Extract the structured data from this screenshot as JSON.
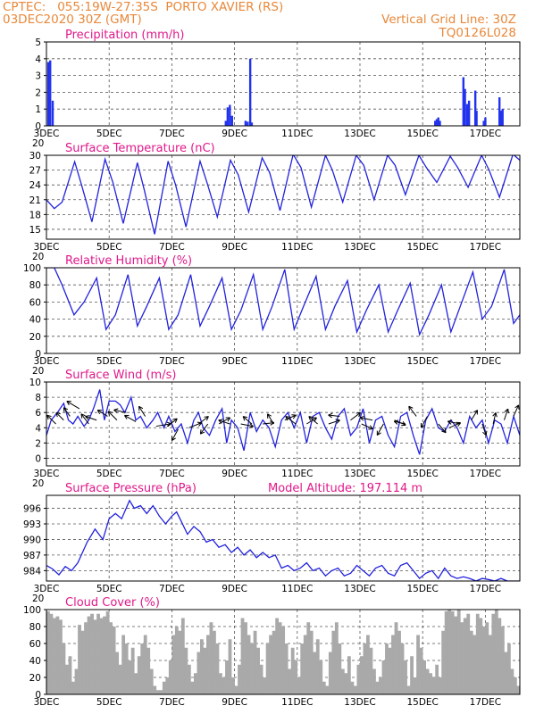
{
  "header": {
    "line1": "CPTEC:   055:19W-27:35S  PORTO XAVIER (RS)",
    "line2": "03DEC2020 30Z (GMT)",
    "grid_note": "Vertical Grid Line: 30Z",
    "code": "TQ0126L028"
  },
  "colors": {
    "series": "#2222dd",
    "bars": "#2233ee",
    "cloud": "#a9a9a9",
    "title": "#e0188a",
    "header": "#e8883a"
  },
  "x_axis": {
    "labels": [
      "3DEC",
      "5DEC",
      "7DEC",
      "9DEC",
      "11DEC",
      "13DEC",
      "15DEC",
      "17DEC"
    ],
    "label_days": [
      3,
      5,
      7,
      9,
      11,
      13,
      15,
      17
    ],
    "range_days": [
      3,
      18.1
    ],
    "cut_label": "20"
  },
  "chart_data": [
    {
      "type": "bar",
      "title": "Precipitation (mm/h)",
      "ylim": [
        0,
        5
      ],
      "yticks": [
        0,
        1,
        2,
        3,
        4,
        5
      ],
      "x": [
        3.06,
        3.12,
        3.2,
        8.72,
        8.78,
        8.85,
        8.92,
        9.35,
        9.42,
        9.5,
        9.55,
        15.4,
        15.45,
        15.5,
        15.55,
        16.3,
        16.35,
        16.42,
        16.48,
        16.68,
        16.72,
        16.95,
        17.0,
        17.45,
        17.5,
        17.55
      ],
      "values": [
        3.8,
        3.9,
        1.5,
        0.3,
        1.1,
        1.25,
        0.6,
        0.3,
        0.25,
        4.0,
        0.2,
        0.3,
        0.4,
        0.5,
        0.3,
        2.9,
        2.2,
        1.3,
        1.5,
        2.1,
        0.9,
        0.3,
        0.5,
        1.7,
        0.9,
        1.0
      ]
    },
    {
      "type": "line",
      "title": "Surface Temperature (nC)",
      "ylim": [
        13,
        30
      ],
      "yticks": [
        15,
        18,
        21,
        24,
        27,
        30
      ],
      "series": [
        {
          "x": [
            3.0,
            3.25,
            3.5,
            3.9,
            4.12,
            4.45,
            4.87,
            5.12,
            5.45,
            5.9,
            6.12,
            6.45,
            6.88,
            7.12,
            7.45,
            7.9,
            8.12,
            8.45,
            8.87,
            9.12,
            9.45,
            9.88,
            10.12,
            10.45,
            10.87,
            11.12,
            11.45,
            11.9,
            12.12,
            12.45,
            12.88,
            13.12,
            13.45,
            13.88,
            14.12,
            14.45,
            14.88,
            15.12,
            15.45,
            15.88,
            16.12,
            16.45,
            16.88,
            17.12,
            17.45,
            17.88,
            18.1
          ],
          "y": [
            21.0,
            19.2,
            20.5,
            28.7,
            24.0,
            16.5,
            29.2,
            24.5,
            16.2,
            28.5,
            23.0,
            14.0,
            28.8,
            24.0,
            15.5,
            28.8,
            24.5,
            17.5,
            29.0,
            26.0,
            18.5,
            29.5,
            26.5,
            18.8,
            30.2,
            27.5,
            19.5,
            30.0,
            27.0,
            20.5,
            30.0,
            28.0,
            21.0,
            30.0,
            28.0,
            22.0,
            30.0,
            27.5,
            24.5,
            29.8,
            27.5,
            23.5,
            30.0,
            27.0,
            21.5,
            30.2,
            29.0
          ]
        }
      ]
    },
    {
      "type": "line",
      "title": "Relative Humidity (%)",
      "ylim": [
        0,
        100
      ],
      "yticks": [
        0,
        20,
        40,
        60,
        80,
        100
      ],
      "series": [
        {
          "x": [
            3.0,
            3.25,
            3.5,
            3.88,
            4.2,
            4.6,
            4.9,
            5.2,
            5.6,
            5.9,
            6.2,
            6.6,
            6.9,
            7.2,
            7.6,
            7.9,
            8.2,
            8.6,
            8.9,
            9.2,
            9.6,
            9.9,
            10.2,
            10.6,
            10.9,
            11.2,
            11.6,
            11.9,
            12.2,
            12.6,
            12.9,
            13.2,
            13.6,
            13.9,
            14.2,
            14.6,
            14.9,
            15.2,
            15.6,
            15.9,
            16.2,
            16.6,
            16.9,
            17.2,
            17.6,
            17.9,
            18.1
          ],
          "y": [
            100,
            100,
            80,
            45,
            60,
            88,
            28,
            45,
            92,
            32,
            55,
            88,
            28,
            45,
            92,
            32,
            55,
            88,
            28,
            50,
            92,
            28,
            55,
            98,
            28,
            55,
            90,
            28,
            55,
            85,
            25,
            50,
            80,
            25,
            50,
            82,
            22,
            45,
            80,
            25,
            55,
            95,
            40,
            55,
            98,
            35,
            45
          ]
        }
      ]
    },
    {
      "type": "line",
      "title": "Surface Wind (m/s)",
      "ylim": [
        -1,
        10
      ],
      "yticks": [
        0,
        2,
        4,
        6,
        8,
        10
      ],
      "series": [
        {
          "x": [
            3.0,
            3.15,
            3.35,
            3.55,
            3.7,
            3.85,
            4.0,
            4.2,
            4.35,
            4.5,
            4.7,
            4.85,
            5.0,
            5.2,
            5.35,
            5.5,
            5.7,
            5.85,
            6.0,
            6.2,
            6.4,
            6.55,
            6.75,
            6.9,
            7.1,
            7.3,
            7.5,
            7.7,
            7.85,
            8.0,
            8.2,
            8.4,
            8.6,
            8.75,
            8.9,
            9.1,
            9.3,
            9.5,
            9.7,
            9.9,
            10.1,
            10.3,
            10.5,
            10.7,
            10.9,
            11.1,
            11.3,
            11.5,
            11.7,
            11.9,
            12.1,
            12.3,
            12.5,
            12.7,
            12.9,
            13.1,
            13.3,
            13.5,
            13.7,
            13.9,
            14.1,
            14.3,
            14.5,
            14.7,
            14.9,
            15.1,
            15.3,
            15.5,
            15.7,
            15.9,
            16.1,
            16.3,
            16.5,
            16.7,
            16.9,
            17.1,
            17.3,
            17.5,
            17.7,
            17.9,
            18.1
          ],
          "y": [
            3.0,
            5.0,
            6.0,
            7.2,
            5.0,
            4.5,
            5.5,
            4.2,
            5.0,
            6.5,
            9.0,
            5.0,
            7.5,
            7.5,
            7.0,
            6.0,
            8.0,
            5.0,
            5.5,
            4.0,
            5.0,
            6.0,
            4.0,
            5.5,
            3.5,
            4.5,
            2.0,
            5.0,
            6.0,
            4.0,
            3.0,
            5.0,
            6.5,
            2.0,
            5.0,
            4.0,
            1.0,
            6.0,
            3.5,
            5.0,
            4.0,
            1.5,
            5.0,
            6.0,
            4.0,
            6.0,
            2.0,
            5.5,
            6.0,
            4.0,
            2.5,
            5.5,
            6.5,
            3.0,
            4.0,
            6.5,
            2.0,
            5.0,
            5.5,
            3.0,
            1.5,
            5.5,
            6.0,
            3.0,
            0.5,
            5.0,
            6.5,
            4.0,
            3.5,
            5.0,
            4.0,
            2.0,
            5.5,
            4.0,
            5.0,
            2.0,
            5.0,
            4.5,
            2.0,
            5.5,
            3.0
          ]
        }
      ],
      "arrows": {
        "x": [
          3.3,
          3.55,
          3.75,
          4.05,
          4.35,
          4.6,
          4.95,
          5.25,
          5.55,
          5.85,
          6.15,
          6.5,
          6.85,
          7.2,
          7.55,
          7.85,
          8.15,
          8.5,
          8.85,
          9.2,
          9.55,
          9.9,
          10.25,
          10.6,
          10.95,
          11.3,
          11.65,
          12.0,
          12.35,
          12.7,
          13.05,
          13.4,
          13.75,
          14.1,
          14.45,
          14.8,
          15.15,
          15.5,
          15.85,
          16.2,
          16.55,
          16.9,
          17.25,
          17.6,
          17.9
        ],
        "y": [
          4.5,
          5.0,
          5.5,
          6.5,
          4.5,
          5.0,
          5.5,
          5.0,
          6.0,
          4.8,
          5.5,
          4.2,
          4.2,
          3.8,
          4.0,
          4.5,
          4.5,
          4.5,
          4.5,
          4.5,
          4.5,
          4.5,
          4.5,
          5.0,
          4.5,
          4.5,
          4.5,
          4.5,
          5.5,
          5.0,
          4.5,
          5.0,
          4.5,
          5.0,
          4.5,
          5.5,
          5.5,
          4.5,
          4.0,
          4.5,
          5.0,
          4.5,
          4.5,
          5.0,
          5.5
        ],
        "u": [
          -0.7,
          -0.6,
          -0.5,
          -1.0,
          -0.6,
          -0.9,
          -0.8,
          -0.7,
          -1.0,
          -0.9,
          -0.5,
          1.2,
          0.8,
          -0.5,
          1.0,
          0.8,
          -0.6,
          0.9,
          -0.9,
          1.0,
          -0.7,
          0.9,
          -0.5,
          0.9,
          -0.8,
          0.8,
          -0.7,
          0.9,
          -0.9,
          0.8,
          0.9,
          -1.0,
          -0.5,
          0.9,
          -0.9,
          -0.6,
          -0.5,
          0.6,
          0.9,
          -1.0,
          0.5,
          0.3,
          0.2,
          0.3,
          0.4
        ],
        "v": [
          0.7,
          0.6,
          0.7,
          0.6,
          0.8,
          0.3,
          0.5,
          0.7,
          0.2,
          0.5,
          0.8,
          0.2,
          0.6,
          -0.9,
          0.4,
          0.6,
          -0.8,
          0.5,
          0.3,
          -0.2,
          0.6,
          0.1,
          0.8,
          0.4,
          0.6,
          0.5,
          0.6,
          0.3,
          0.1,
          0.6,
          -0.4,
          0.2,
          -0.9,
          -0.4,
          0.2,
          0.8,
          -0.9,
          -0.7,
          0.4,
          0.2,
          0.8,
          -0.9,
          0.9,
          0.9,
          0.9
        ]
      }
    },
    {
      "type": "line",
      "title": "Surface Pressure (hPa)",
      "subtitle": "Model Altitude: 197.114  m",
      "ylim": [
        982,
        998.5
      ],
      "yticks": [
        984,
        987,
        990,
        993,
        996
      ],
      "series": [
        {
          "x": [
            3.0,
            3.2,
            3.4,
            3.6,
            3.8,
            4.0,
            4.3,
            4.55,
            4.8,
            5.0,
            5.2,
            5.4,
            5.65,
            5.8,
            6.0,
            6.2,
            6.4,
            6.6,
            6.8,
            7.0,
            7.15,
            7.3,
            7.5,
            7.7,
            7.9,
            8.1,
            8.3,
            8.5,
            8.7,
            8.9,
            9.1,
            9.3,
            9.5,
            9.7,
            9.9,
            10.1,
            10.3,
            10.5,
            10.7,
            10.9,
            11.1,
            11.3,
            11.5,
            11.7,
            11.9,
            12.1,
            12.3,
            12.5,
            12.7,
            12.9,
            13.1,
            13.3,
            13.5,
            13.7,
            13.9,
            14.1,
            14.3,
            14.5,
            14.7,
            14.9,
            15.1,
            15.3,
            15.5,
            15.7,
            15.9,
            16.1,
            16.3,
            16.5,
            16.7,
            16.9,
            17.1,
            17.3,
            17.5,
            17.7,
            17.9,
            18.1
          ],
          "y": [
            985.0,
            984.3,
            983.2,
            984.8,
            984.0,
            985.5,
            989.5,
            992.0,
            990.0,
            994.0,
            995.0,
            994.0,
            997.5,
            996.0,
            996.5,
            995.0,
            996.5,
            994.5,
            993.0,
            994.5,
            995.3,
            993.5,
            991.0,
            992.5,
            991.5,
            989.5,
            990.0,
            988.5,
            989.0,
            987.5,
            988.5,
            987.0,
            988.0,
            986.5,
            987.5,
            986.5,
            987.0,
            984.5,
            985.0,
            984.0,
            984.5,
            985.5,
            984.0,
            984.5,
            983.0,
            984.0,
            984.5,
            983.0,
            983.5,
            985.0,
            984.0,
            983.0,
            984.5,
            985.0,
            983.5,
            983.0,
            985.0,
            985.5,
            984.0,
            982.5,
            983.5,
            984.0,
            982.5,
            984.5,
            983.0,
            982.5,
            982.8,
            982.5,
            982.0,
            982.5,
            982.3,
            982.0,
            982.5,
            982.0,
            982.0,
            982.0
          ]
        }
      ]
    },
    {
      "type": "area",
      "title": "Cloud Cover (%)",
      "ylim": [
        0,
        100
      ],
      "yticks": [
        0,
        20,
        40,
        60,
        80,
        100
      ],
      "x": [
        3.0,
        3.1,
        3.2,
        3.3,
        3.4,
        3.5,
        3.6,
        3.7,
        3.8,
        3.9,
        4.0,
        4.1,
        4.2,
        4.3,
        4.4,
        4.5,
        4.6,
        4.7,
        4.8,
        4.9,
        5.0,
        5.1,
        5.2,
        5.3,
        5.4,
        5.5,
        5.6,
        5.7,
        5.8,
        5.9,
        6.0,
        6.1,
        6.2,
        6.3,
        6.4,
        6.5,
        6.6,
        6.7,
        6.8,
        6.9,
        7.0,
        7.1,
        7.2,
        7.3,
        7.4,
        7.5,
        7.6,
        7.7,
        7.8,
        7.9,
        8.0,
        8.1,
        8.2,
        8.3,
        8.4,
        8.5,
        8.6,
        8.7,
        8.8,
        8.9,
        9.0,
        9.1,
        9.2,
        9.3,
        9.4,
        9.5,
        9.6,
        9.7,
        9.8,
        9.9,
        10.0,
        10.1,
        10.2,
        10.3,
        10.4,
        10.5,
        10.6,
        10.7,
        10.8,
        10.9,
        11.0,
        11.1,
        11.2,
        11.3,
        11.4,
        11.5,
        11.6,
        11.7,
        11.8,
        11.9,
        12.0,
        12.1,
        12.2,
        12.3,
        12.4,
        12.5,
        12.6,
        12.7,
        12.8,
        12.9,
        13.0,
        13.1,
        13.2,
        13.3,
        13.4,
        13.5,
        13.6,
        13.7,
        13.8,
        13.9,
        14.0,
        14.1,
        14.2,
        14.3,
        14.4,
        14.5,
        14.6,
        14.7,
        14.8,
        14.9,
        15.0,
        15.1,
        15.2,
        15.3,
        15.4,
        15.5,
        15.6,
        15.7,
        15.8,
        15.9,
        16.0,
        16.1,
        16.2,
        16.3,
        16.4,
        16.5,
        16.6,
        16.7,
        16.8,
        16.9,
        17.0,
        17.1,
        17.2,
        17.3,
        17.4,
        17.5,
        17.6,
        17.7,
        17.8,
        17.9,
        18.0,
        18.1
      ],
      "values": [
        98,
        95,
        90,
        92,
        88,
        60,
        35,
        45,
        15,
        30,
        82,
        75,
        85,
        92,
        95,
        88,
        95,
        90,
        92,
        98,
        85,
        80,
        50,
        35,
        70,
        60,
        40,
        55,
        25,
        45,
        60,
        70,
        55,
        30,
        10,
        5,
        5,
        15,
        20,
        40,
        70,
        80,
        75,
        90,
        55,
        35,
        15,
        25,
        50,
        65,
        55,
        70,
        85,
        75,
        60,
        25,
        20,
        40,
        65,
        20,
        10,
        35,
        90,
        85,
        70,
        60,
        75,
        55,
        35,
        20,
        60,
        70,
        75,
        90,
        85,
        80,
        60,
        30,
        55,
        40,
        20,
        60,
        70,
        85,
        75,
        50,
        65,
        40,
        15,
        10,
        50,
        75,
        85,
        60,
        30,
        25,
        45,
        15,
        10,
        35,
        45,
        60,
        70,
        55,
        30,
        15,
        20,
        40,
        60,
        55,
        70,
        85,
        75,
        60,
        40,
        10,
        45,
        20,
        70,
        55,
        40,
        30,
        25,
        20,
        35,
        20,
        75,
        98,
        100,
        98,
        92,
        100,
        85,
        90,
        95,
        75,
        70,
        95,
        90,
        80,
        85,
        70,
        95,
        100,
        90,
        80,
        50,
        60,
        30,
        20,
        10,
        5
      ]
    }
  ]
}
